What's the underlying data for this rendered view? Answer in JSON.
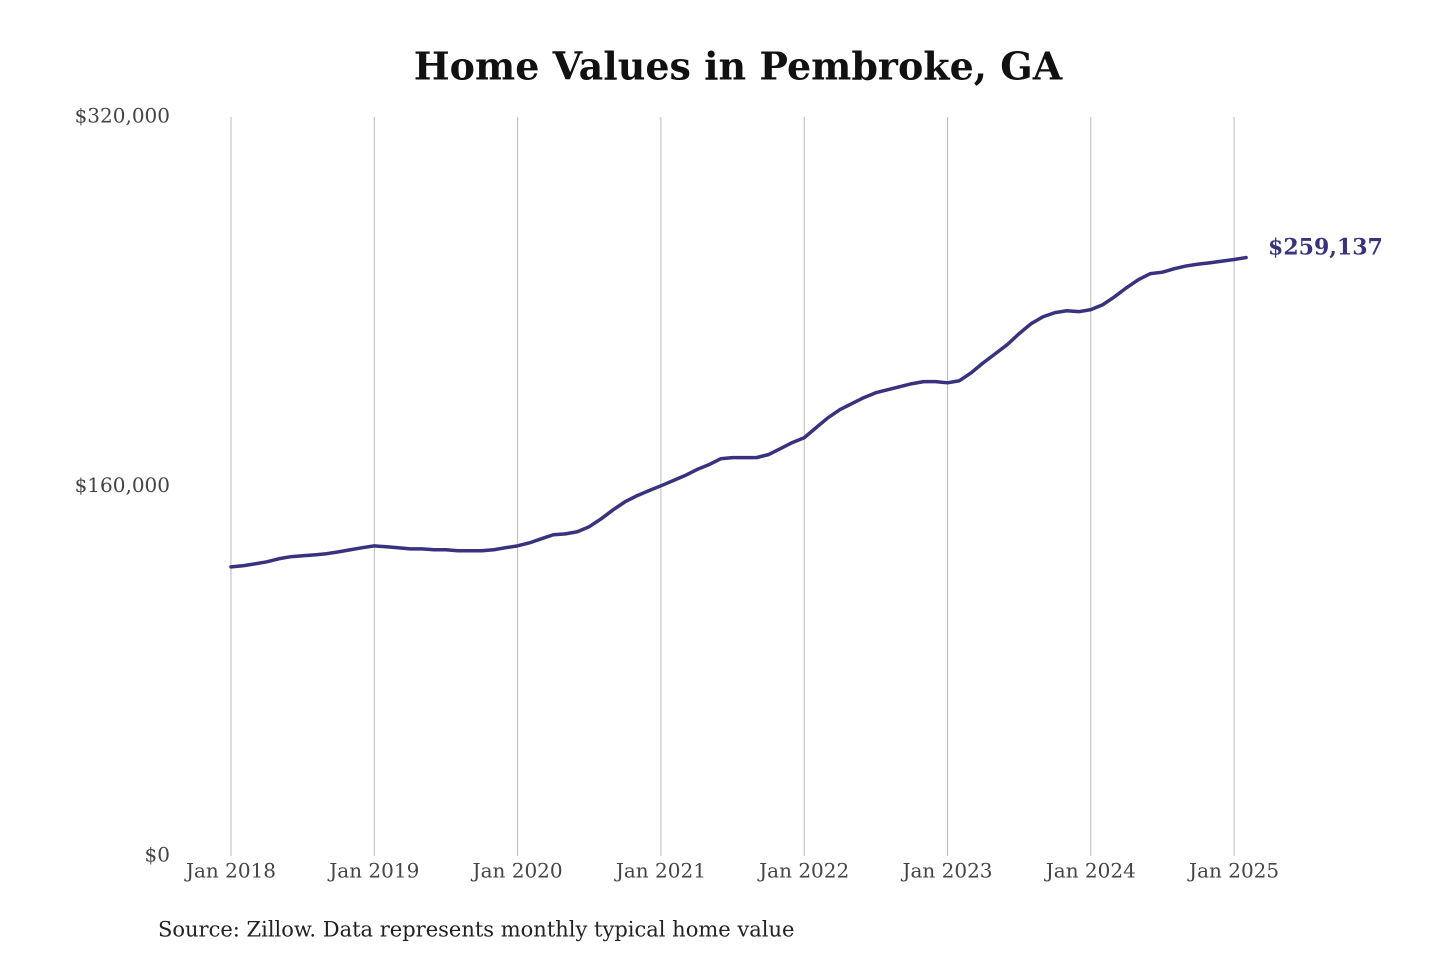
{
  "chart_data": {
    "type": "line",
    "title": "Home Values in Pembroke, GA",
    "source": "Source: Zillow. Data represents monthly typical home value",
    "annotation": "$259,137",
    "x": [
      "2018-01",
      "2018-02",
      "2018-03",
      "2018-04",
      "2018-05",
      "2018-06",
      "2018-07",
      "2018-08",
      "2018-09",
      "2018-10",
      "2018-11",
      "2018-12",
      "2019-01",
      "2019-02",
      "2019-03",
      "2019-04",
      "2019-05",
      "2019-06",
      "2019-07",
      "2019-08",
      "2019-09",
      "2019-10",
      "2019-11",
      "2019-12",
      "2020-01",
      "2020-02",
      "2020-03",
      "2020-04",
      "2020-05",
      "2020-06",
      "2020-07",
      "2020-08",
      "2020-09",
      "2020-10",
      "2020-11",
      "2020-12",
      "2021-01",
      "2021-02",
      "2021-03",
      "2021-04",
      "2021-05",
      "2021-06",
      "2021-07",
      "2021-08",
      "2021-09",
      "2021-10",
      "2021-11",
      "2021-12",
      "2022-01",
      "2022-02",
      "2022-03",
      "2022-04",
      "2022-05",
      "2022-06",
      "2022-07",
      "2022-08",
      "2022-09",
      "2022-10",
      "2022-11",
      "2022-12",
      "2023-01",
      "2023-02",
      "2023-03",
      "2023-04",
      "2023-05",
      "2023-06",
      "2023-07",
      "2023-08",
      "2023-09",
      "2023-10",
      "2023-11",
      "2023-12",
      "2024-01",
      "2024-02",
      "2024-03",
      "2024-04",
      "2024-05",
      "2024-06",
      "2024-07",
      "2024-08",
      "2024-09",
      "2024-10",
      "2024-11",
      "2024-12",
      "2025-01",
      "2025-02"
    ],
    "series": [
      {
        "name": "Typical home value",
        "color": "#38327f",
        "values": [
          125200,
          125700,
          126500,
          127400,
          128700,
          129600,
          130000,
          130400,
          130900,
          131700,
          132600,
          133500,
          134300,
          133900,
          133500,
          133000,
          133000,
          132600,
          132600,
          132200,
          132200,
          132200,
          132600,
          133500,
          134300,
          135600,
          137400,
          139100,
          139500,
          140400,
          142600,
          146000,
          149900,
          153400,
          156000,
          158200,
          160300,
          162500,
          164700,
          167300,
          169400,
          172000,
          172500,
          172500,
          172500,
          173800,
          176400,
          179000,
          181100,
          185500,
          189800,
          193300,
          195900,
          198500,
          200600,
          201900,
          203200,
          204500,
          205400,
          205400,
          204900,
          205800,
          209300,
          213600,
          217500,
          221400,
          226200,
          230500,
          233500,
          235300,
          236100,
          235700,
          236600,
          238700,
          242200,
          246100,
          249600,
          252200,
          252800,
          254300,
          255500,
          256300,
          256900,
          257600,
          258300,
          259137
        ]
      }
    ],
    "xlim": [
      "2018-01",
      "2025-02"
    ],
    "xticks": [
      {
        "value": "2018-01",
        "label": "Jan 2018"
      },
      {
        "value": "2019-01",
        "label": "Jan 2019"
      },
      {
        "value": "2020-01",
        "label": "Jan 2020"
      },
      {
        "value": "2021-01",
        "label": "Jan 2021"
      },
      {
        "value": "2022-01",
        "label": "Jan 2022"
      },
      {
        "value": "2023-01",
        "label": "Jan 2023"
      },
      {
        "value": "2024-01",
        "label": "Jan 2024"
      },
      {
        "value": "2025-01",
        "label": "Jan 2025"
      }
    ],
    "ylim": [
      0,
      320000
    ],
    "yticks": [
      {
        "value": 0,
        "label": "$0"
      },
      {
        "value": 160000,
        "label": "$160,000"
      },
      {
        "value": 320000,
        "label": "$320,000"
      }
    ],
    "grid": "x"
  }
}
